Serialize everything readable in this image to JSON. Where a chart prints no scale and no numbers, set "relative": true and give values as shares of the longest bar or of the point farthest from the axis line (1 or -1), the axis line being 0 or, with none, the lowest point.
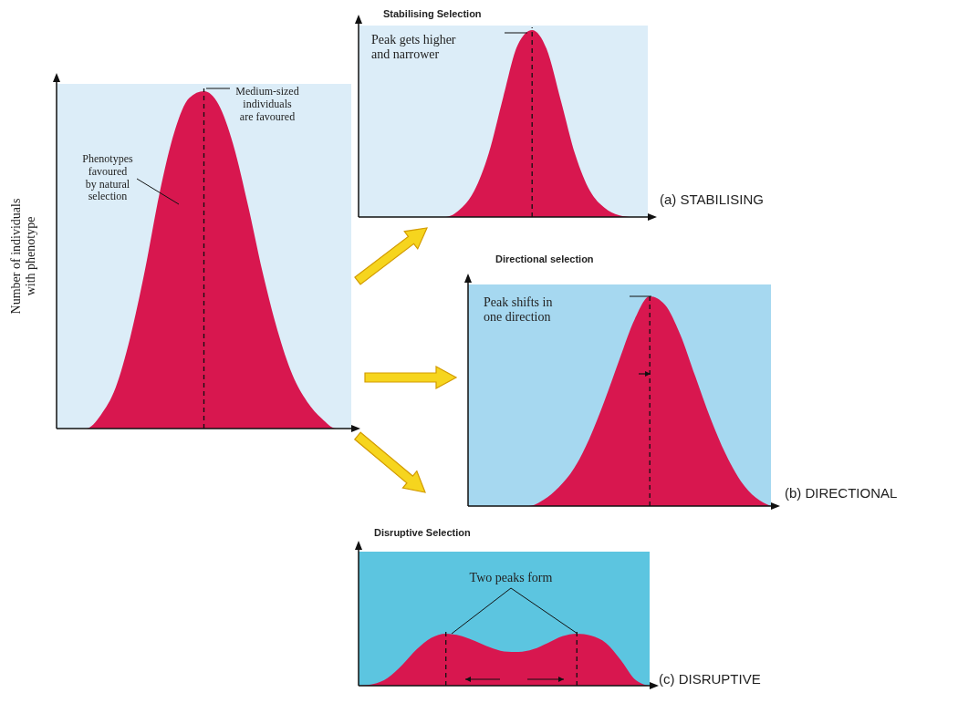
{
  "chart_data": [
    {
      "type": "area",
      "relative": true,
      "ylabel": "Number of individuals\nwith phenotype",
      "categories": [
        null,
        null,
        null,
        null,
        null,
        null,
        null,
        null,
        null,
        null,
        null,
        null,
        null,
        null,
        null,
        null,
        null,
        null,
        null,
        null,
        null
      ],
      "values": [
        0,
        0,
        0,
        0.04,
        0.12,
        0.27,
        0.47,
        0.7,
        0.88,
        0.98,
        1,
        0.96,
        0.84,
        0.66,
        0.46,
        0.29,
        0.16,
        0.08,
        0.03,
        0,
        0
      ],
      "color": "#d8174f",
      "annotations": [
        "Phenotypes\nfavoured\nby natural\nselection",
        "Medium-sized\nindividuals\nare favoured"
      ]
    },
    {
      "type": "area",
      "relative": true,
      "title": "Stabilising Selection",
      "categories": [
        null,
        null,
        null,
        null,
        null,
        null,
        null,
        null,
        null,
        null,
        null,
        null,
        null,
        null,
        null,
        null,
        null,
        null,
        null,
        null,
        null
      ],
      "values": [
        0,
        0,
        0,
        0,
        0,
        0,
        0,
        0.04,
        0.14,
        0.34,
        0.64,
        0.92,
        1,
        0.9,
        0.62,
        0.33,
        0.14,
        0.05,
        0.01,
        0,
        0
      ],
      "color": "#d8174f",
      "annotations": [
        "Peak gets higher\nand narrower",
        "(a) STABILISING"
      ]
    },
    {
      "type": "area",
      "relative": true,
      "title": "Directional selection",
      "categories": [
        null,
        null,
        null,
        null,
        null,
        null,
        null,
        null,
        null,
        null,
        null,
        null,
        null,
        null,
        null,
        null,
        null,
        null,
        null,
        null,
        null
      ],
      "values": [
        0,
        0,
        0,
        0,
        0,
        0.03,
        0.09,
        0.18,
        0.32,
        0.5,
        0.7,
        0.89,
        1,
        0.96,
        0.82,
        0.62,
        0.42,
        0.25,
        0.12,
        0.04,
        0
      ],
      "color": "#d8174f",
      "annotations": [
        "Peak shifts in\none direction",
        "(b) DIRECTIONAL"
      ]
    },
    {
      "type": "area",
      "relative": true,
      "title": "Disruptive Selection",
      "categories": [
        null,
        null,
        null,
        null,
        null,
        null,
        null,
        null,
        null,
        null,
        null,
        null,
        null,
        null,
        null,
        null,
        null,
        null,
        null,
        null,
        null
      ],
      "values": [
        0,
        0.03,
        0.15,
        0.4,
        0.7,
        0.92,
        1,
        0.96,
        0.86,
        0.74,
        0.66,
        0.65,
        0.7,
        0.82,
        0.95,
        1,
        0.96,
        0.82,
        0.5,
        0.12,
        0
      ],
      "color": "#d8174f",
      "annotations": [
        "Two peaks form",
        "(c) DISRUPTIVE"
      ]
    }
  ]
}
